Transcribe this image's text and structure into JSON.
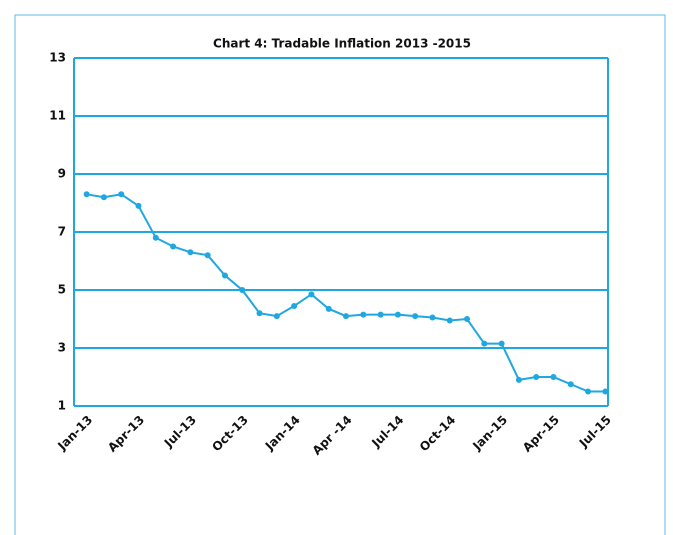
{
  "chart_data": {
    "type": "line",
    "title": "Chart 4: Tradable Inflation 2013 -2015",
    "categories": [
      "Jan-13",
      null,
      null,
      "Apr-13",
      null,
      null,
      "Jul-13",
      null,
      null,
      "Oct-13",
      null,
      null,
      "Jan-14",
      null,
      null,
      "Apr -14",
      null,
      null,
      "Jul-14",
      null,
      null,
      "Oct-14",
      null,
      null,
      "Jan-15",
      null,
      null,
      "Apr-15",
      null,
      null,
      "Jul-15"
    ],
    "series": [
      {
        "name": "Tradable inflation",
        "color": "#1fa7e1",
        "values": [
          8.3,
          8.2,
          8.3,
          7.9,
          6.8,
          6.5,
          6.3,
          6.2,
          5.5,
          5.0,
          4.2,
          4.1,
          4.45,
          4.85,
          4.35,
          4.1,
          4.15,
          4.15,
          4.15,
          4.1,
          4.05,
          3.95,
          4.0,
          3.15,
          3.15,
          1.9,
          2.0,
          2.0,
          1.75,
          1.5,
          1.5
        ]
      }
    ],
    "ylim": [
      1,
      13
    ],
    "yticks": [
      1,
      3,
      5,
      7,
      9,
      11,
      13
    ],
    "grid": true
  }
}
